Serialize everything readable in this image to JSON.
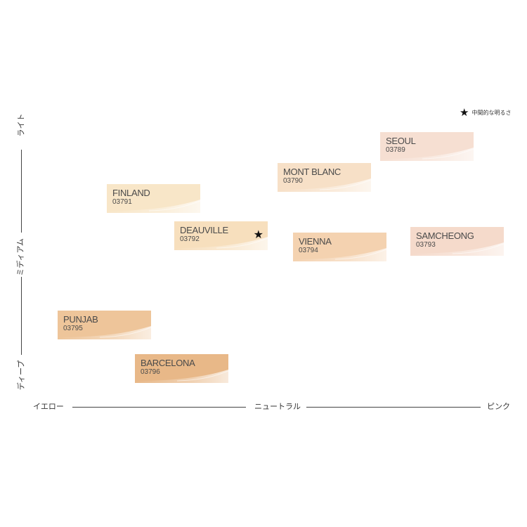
{
  "legend": {
    "symbol": "★",
    "label": "中間的な明るさ"
  },
  "x_axis": {
    "left_label": "イエロー",
    "center_label": "ニュートラル",
    "right_label": "ピンク"
  },
  "y_axis": {
    "top_label": "ライト",
    "middle_label": "ミディアム",
    "bottom_label": "ディープ"
  },
  "chart_data": {
    "type": "scatter",
    "xlabel": "",
    "ylabel": "",
    "x_scale": [
      "イエロー",
      "ニュートラル",
      "ピンク"
    ],
    "y_scale": [
      "ディープ",
      "ミディアム",
      "ライト"
    ],
    "points": [
      {
        "name": "SEOUL",
        "code": "03789",
        "undertone": "pink",
        "depth": "light",
        "color": "#f6dfd2",
        "star": false
      },
      {
        "name": "MONT BLANC",
        "code": "03790",
        "undertone": "neutral",
        "depth": "light",
        "color": "#f7e0c7",
        "star": false
      },
      {
        "name": "FINLAND",
        "code": "03791",
        "undertone": "yellow",
        "depth": "light",
        "color": "#f8e6c8",
        "star": false
      },
      {
        "name": "DEAUVILLE",
        "code": "03792",
        "undertone": "yellow",
        "depth": "medium",
        "color": "#f7dfbd",
        "star": true
      },
      {
        "name": "VIENNA",
        "code": "03794",
        "undertone": "neutral",
        "depth": "medium",
        "color": "#f4d2b0",
        "star": false
      },
      {
        "name": "SAMCHEONG",
        "code": "03793",
        "undertone": "pink",
        "depth": "medium",
        "color": "#f5dacb",
        "star": false
      },
      {
        "name": "PUNJAB",
        "code": "03795",
        "undertone": "yellow",
        "depth": "deep",
        "color": "#eec59a",
        "star": false
      },
      {
        "name": "BARCELONA",
        "code": "03796",
        "undertone": "yellow",
        "depth": "deep",
        "color": "#e8b888",
        "star": false
      }
    ]
  }
}
